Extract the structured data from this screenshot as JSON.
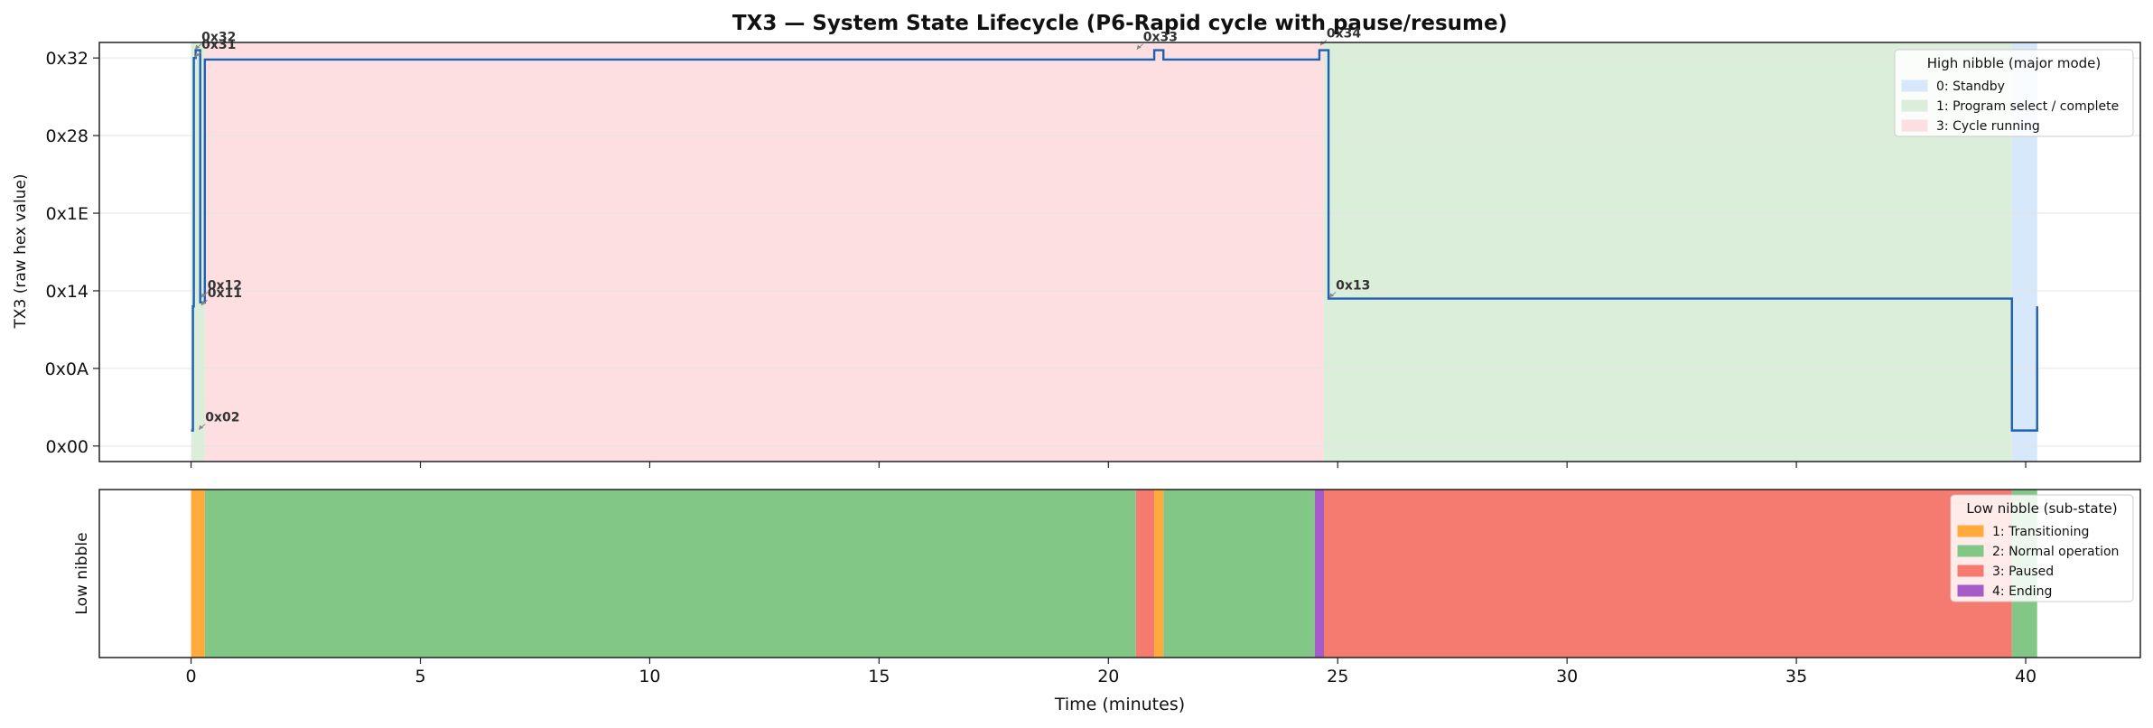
{
  "chart_data": [
    {
      "type": "step",
      "title": "TX3 — System State Lifecycle (P6-Rapid cycle with pause/resume)",
      "ylabel": "TX3 (raw hex value)",
      "xlim": [
        -2,
        42.5
      ],
      "ylim": [
        -2,
        52
      ],
      "grid": "horizontal",
      "yticks": [
        {
          "value": 0,
          "label": "0x00"
        },
        {
          "value": 10,
          "label": "0x0A"
        },
        {
          "value": 20,
          "label": "0x14"
        },
        {
          "value": 30,
          "label": "0x1E"
        },
        {
          "value": 40,
          "label": "0x28"
        },
        {
          "value": 50,
          "label": "0x32"
        }
      ],
      "series": [
        {
          "color": "#1f5fb4",
          "x": [
            0.0,
            0.04,
            0.06,
            0.1,
            0.2,
            0.3,
            20.6,
            21.0,
            21.2,
            24.6,
            24.8,
            39.7,
            40.25
          ],
          "y": [
            2,
            18,
            50,
            51,
            18.5,
            49.8,
            49.8,
            51,
            49.8,
            51,
            19,
            2,
            18
          ]
        }
      ],
      "bands": [
        {
          "start": 0.0,
          "end": 0.3,
          "color": "#dbeeda",
          "legend": 1
        },
        {
          "start": 0.3,
          "end": 24.7,
          "color": "#fddfe2",
          "legend": 2
        },
        {
          "start": 24.7,
          "end": 39.7,
          "color": "#dbeeda",
          "legend": 1
        },
        {
          "start": 39.7,
          "end": 40.25,
          "color": "#d6e8fa",
          "legend": 0
        }
      ],
      "annotations": [
        {
          "label": "0x32",
          "x": 0.07,
          "y": 51
        },
        {
          "label": "0x31",
          "x": 0.07,
          "y": 50
        },
        {
          "label": "0x12",
          "x": 0.2,
          "y": 19
        },
        {
          "label": "0x11",
          "x": 0.2,
          "y": 18
        },
        {
          "label": "0x02",
          "x": 0.15,
          "y": 2
        },
        {
          "label": "0x33",
          "x": 20.6,
          "y": 51
        },
        {
          "label": "0x34",
          "x": 24.6,
          "y": 51.5
        },
        {
          "label": "0x13",
          "x": 24.8,
          "y": 19
        }
      ],
      "legend": {
        "title": "High nibble (major mode)",
        "position": "top-right",
        "entries": [
          {
            "label": "0: Standby",
            "color": "#d6e8fa"
          },
          {
            "label": "1: Program select / complete",
            "color": "#dbeeda"
          },
          {
            "label": "3: Cycle running",
            "color": "#fddfe2"
          }
        ]
      }
    },
    {
      "type": "timeline",
      "ylabel": "Low nibble",
      "xlabel": "Time (minutes)",
      "xlim": [
        -2,
        42.5
      ],
      "xticks": [
        0,
        5,
        10,
        15,
        20,
        25,
        30,
        35,
        40
      ],
      "segments": [
        {
          "start": 0.0,
          "end": 0.3,
          "state": 1
        },
        {
          "start": 0.3,
          "end": 20.6,
          "state": 2
        },
        {
          "start": 20.6,
          "end": 21.0,
          "state": 3
        },
        {
          "start": 21.0,
          "end": 21.2,
          "state": 1
        },
        {
          "start": 21.2,
          "end": 24.5,
          "state": 2
        },
        {
          "start": 24.5,
          "end": 24.7,
          "state": 4
        },
        {
          "start": 24.7,
          "end": 39.7,
          "state": 3
        },
        {
          "start": 39.7,
          "end": 40.25,
          "state": 2
        }
      ],
      "legend": {
        "title": "Low nibble (sub-state)",
        "position": "top-right",
        "entries": [
          {
            "label": "1: Transitioning",
            "color": "#ffaa3b",
            "state": 1
          },
          {
            "label": "2: Normal operation",
            "color": "#82c785",
            "state": 2
          },
          {
            "label": "3: Paused",
            "color": "#f57b71",
            "state": 3
          },
          {
            "label": "4: Ending",
            "color": "#a55cc8",
            "state": 4
          }
        ]
      }
    }
  ]
}
